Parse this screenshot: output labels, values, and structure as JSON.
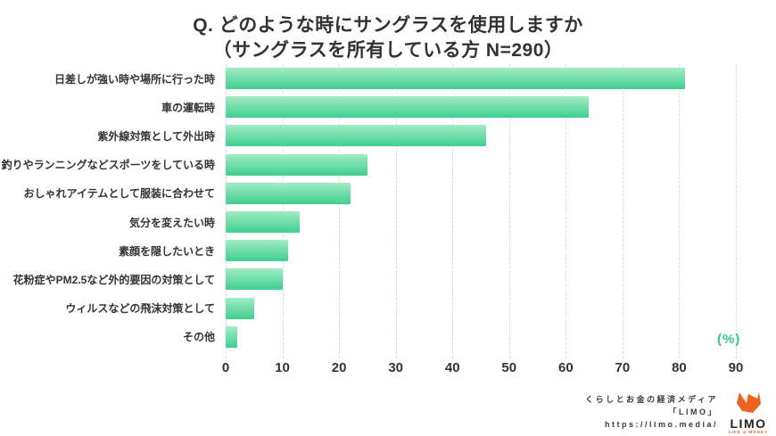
{
  "title": {
    "line1": "Q. どのような時にサングラスを使用しますか",
    "line2": "（サングラスを所有している方 N=290）"
  },
  "chart_data": {
    "type": "bar",
    "orientation": "horizontal",
    "title": "Q. どのような時にサングラスを使用しますか（サングラスを所有している方 N=290）",
    "n": 290,
    "categories": [
      "日差しが強い時や場所に行った時",
      "車の運転時",
      "紫外線対策として外出時",
      "釣りやランニングなどスポーツをしている時",
      "おしゃれアイテムとして服装に合わせて",
      "気分を変えたい時",
      "素顔を隠したいとき",
      "花粉症やPM2.5など外的要因の対策として",
      "ウィルスなどの飛沫対策として",
      "その他"
    ],
    "values": [
      81,
      64,
      46,
      25,
      22,
      13,
      11,
      10,
      5,
      2
    ],
    "unit": "%",
    "unit_label": "(%)",
    "xlabel": "",
    "ylabel": "",
    "xlim": [
      0,
      90
    ],
    "xticks": [
      0,
      10,
      20,
      30,
      40,
      50,
      60,
      70,
      80,
      90
    ],
    "grid": true,
    "gridline_style": "dashed",
    "bar_color_top": "#a2ecc5",
    "bar_color_bottom": "#40ce91",
    "gridline_color": "#bfe9d6",
    "unit_label_color": "#2fc98f"
  },
  "footer": {
    "credit_line1": "くらしとお金の経済メディア",
    "credit_line2": "「LIMO」",
    "credit_line3": "https://limo.media/",
    "logo_text": "LIMO",
    "logo_subtext": "LIFE & MONEY",
    "logo_color": "#ee6320"
  }
}
